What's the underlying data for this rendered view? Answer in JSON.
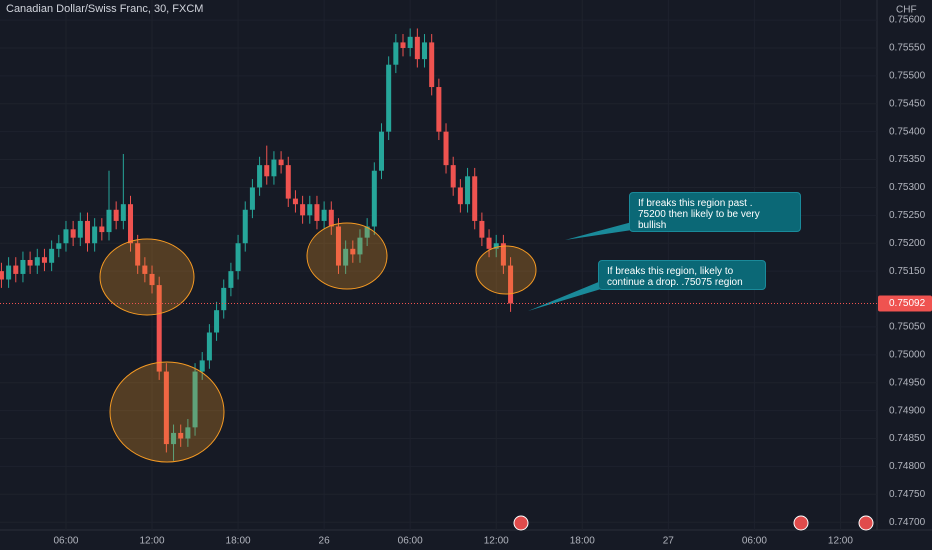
{
  "chart_data": {
    "type": "candlestick",
    "title": "Canadian Dollar/Swiss Franc, 30, FXCM",
    "currency": "CHF",
    "up_color": "#26a69a",
    "down_color": "#ef5350",
    "current_price": 0.75092,
    "xlim": [
      -9.2,
      113.1
    ],
    "xticks": [
      {
        "value": 0,
        "label": "06:00"
      },
      {
        "value": 12,
        "label": "12:00"
      },
      {
        "value": 24,
        "label": "18:00"
      },
      {
        "value": 36,
        "label": "26"
      },
      {
        "value": 48,
        "label": "06:00"
      },
      {
        "value": 60,
        "label": "12:00"
      },
      {
        "value": 72,
        "label": "18:00"
      },
      {
        "value": 84,
        "label": "27"
      },
      {
        "value": 96,
        "label": "06:00"
      },
      {
        "value": 108,
        "label": "12:00"
      }
    ],
    "ylim": [
      0.74686,
      0.75636
    ],
    "yticks": [
      {
        "value": 0.756,
        "label": "0.75600"
      },
      {
        "value": 0.7555,
        "label": "0.75550"
      },
      {
        "value": 0.755,
        "label": "0.75500"
      },
      {
        "value": 0.7545,
        "label": "0.75450"
      },
      {
        "value": 0.754,
        "label": "0.75400"
      },
      {
        "value": 0.7535,
        "label": "0.75350"
      },
      {
        "value": 0.753,
        "label": "0.75300"
      },
      {
        "value": 0.7525,
        "label": "0.75250"
      },
      {
        "value": 0.752,
        "label": "0.75200"
      },
      {
        "value": 0.7515,
        "label": "0.75150"
      },
      {
        "value": 0.7505,
        "label": "0.75050"
      },
      {
        "value": 0.75,
        "label": "0.75000"
      },
      {
        "value": 0.7495,
        "label": "0.74950"
      },
      {
        "value": 0.749,
        "label": "0.74900"
      },
      {
        "value": 0.7485,
        "label": "0.74850"
      },
      {
        "value": 0.748,
        "label": "0.74800"
      },
      {
        "value": 0.7475,
        "label": "0.74750"
      },
      {
        "value": 0.747,
        "label": "0.74700"
      }
    ],
    "x": [
      -9,
      -8,
      -7,
      -6,
      -5,
      -4,
      -3,
      -2,
      -1,
      0,
      1,
      2,
      3,
      4,
      5,
      6,
      7,
      8,
      9,
      10,
      11,
      12,
      13,
      14,
      15,
      16,
      17,
      18,
      19,
      20,
      21,
      22,
      23,
      24,
      25,
      26,
      27,
      28,
      29,
      30,
      31,
      32,
      33,
      34,
      35,
      36,
      37,
      38,
      39,
      40,
      41,
      42,
      43,
      44,
      45,
      46,
      47,
      48,
      49,
      50,
      51,
      52,
      53,
      54,
      55,
      56,
      57,
      58,
      59,
      60,
      61,
      62
    ],
    "open": [
      0.7515,
      0.75135,
      0.7516,
      0.75145,
      0.7517,
      0.7516,
      0.75175,
      0.75165,
      0.7519,
      0.752,
      0.75225,
      0.7521,
      0.7524,
      0.752,
      0.7523,
      0.7522,
      0.7526,
      0.7524,
      0.7527,
      0.752,
      0.7516,
      0.75145,
      0.75125,
      0.7497,
      0.7484,
      0.7486,
      0.7485,
      0.7487,
      0.7497,
      0.7499,
      0.7504,
      0.7508,
      0.7512,
      0.7515,
      0.752,
      0.7526,
      0.753,
      0.7534,
      0.7532,
      0.7535,
      0.7534,
      0.7528,
      0.7527,
      0.7525,
      0.7527,
      0.7524,
      0.7526,
      0.7523,
      0.7516,
      0.7519,
      0.7518,
      0.7521,
      0.7523,
      0.7533,
      0.754,
      0.7552,
      0.7556,
      0.7555,
      0.7557,
      0.7553,
      0.7556,
      0.7548,
      0.754,
      0.7534,
      0.753,
      0.7527,
      0.7532,
      0.7524,
      0.7521,
      0.7519,
      0.752,
      0.7516
    ],
    "high": [
      0.75165,
      0.75175,
      0.75175,
      0.75185,
      0.75185,
      0.7519,
      0.7519,
      0.75205,
      0.75215,
      0.7524,
      0.7524,
      0.75255,
      0.75255,
      0.75245,
      0.75245,
      0.7533,
      0.75275,
      0.7536,
      0.75285,
      0.75215,
      0.75175,
      0.7516,
      0.7514,
      0.74985,
      0.74875,
      0.74875,
      0.74885,
      0.74985,
      0.75005,
      0.75055,
      0.75095,
      0.75135,
      0.75165,
      0.75215,
      0.75275,
      0.75315,
      0.75355,
      0.75375,
      0.75365,
      0.75365,
      0.75355,
      0.75295,
      0.75285,
      0.75285,
      0.75285,
      0.75275,
      0.75275,
      0.75245,
      0.75205,
      0.75205,
      0.75225,
      0.75245,
      0.75345,
      0.75415,
      0.75535,
      0.75575,
      0.75575,
      0.75585,
      0.75585,
      0.75575,
      0.75575,
      0.75495,
      0.75415,
      0.75355,
      0.75315,
      0.75335,
      0.75335,
      0.75255,
      0.75225,
      0.75215,
      0.75215,
      0.75175
    ],
    "low": [
      0.7512,
      0.7512,
      0.7513,
      0.7513,
      0.75145,
      0.75145,
      0.7515,
      0.7515,
      0.75175,
      0.75185,
      0.75195,
      0.75195,
      0.75185,
      0.75185,
      0.75205,
      0.75205,
      0.75225,
      0.75225,
      0.75185,
      0.75145,
      0.7513,
      0.7511,
      0.74955,
      0.74825,
      0.7481,
      0.74835,
      0.74835,
      0.74855,
      0.74955,
      0.74975,
      0.75025,
      0.75065,
      0.75105,
      0.75135,
      0.75185,
      0.75245,
      0.75285,
      0.75305,
      0.75305,
      0.75325,
      0.75265,
      0.75255,
      0.75235,
      0.75235,
      0.75225,
      0.75225,
      0.75215,
      0.75145,
      0.75145,
      0.75165,
      0.75165,
      0.75195,
      0.75215,
      0.75315,
      0.75385,
      0.75505,
      0.75535,
      0.75535,
      0.75515,
      0.75515,
      0.75465,
      0.75385,
      0.75325,
      0.75285,
      0.75255,
      0.75255,
      0.75225,
      0.75195,
      0.75175,
      0.75175,
      0.75145,
      0.75077
    ],
    "close": [
      0.75135,
      0.7516,
      0.75145,
      0.7517,
      0.7516,
      0.75175,
      0.75165,
      0.7519,
      0.752,
      0.75225,
      0.7521,
      0.7524,
      0.752,
      0.7523,
      0.7522,
      0.7526,
      0.7524,
      0.7527,
      0.752,
      0.7516,
      0.75145,
      0.75125,
      0.7497,
      0.7484,
      0.7486,
      0.7485,
      0.7487,
      0.7497,
      0.7499,
      0.7504,
      0.7508,
      0.7512,
      0.7515,
      0.752,
      0.7526,
      0.753,
      0.7534,
      0.7532,
      0.7535,
      0.7534,
      0.7528,
      0.7527,
      0.7525,
      0.7527,
      0.7524,
      0.7526,
      0.7523,
      0.7516,
      0.7519,
      0.7518,
      0.7521,
      0.7523,
      0.7533,
      0.754,
      0.7552,
      0.7556,
      0.7555,
      0.7557,
      0.7553,
      0.7556,
      0.7548,
      0.754,
      0.7534,
      0.753,
      0.7527,
      0.7532,
      0.7524,
      0.7521,
      0.7519,
      0.752,
      0.7516,
      0.75092
    ],
    "annotations": [
      "If breaks this region past .\n75200 then likely to be very\nbullish",
      "If breaks this region, likely to\ncontinue a drop.  .75075 region"
    ]
  }
}
